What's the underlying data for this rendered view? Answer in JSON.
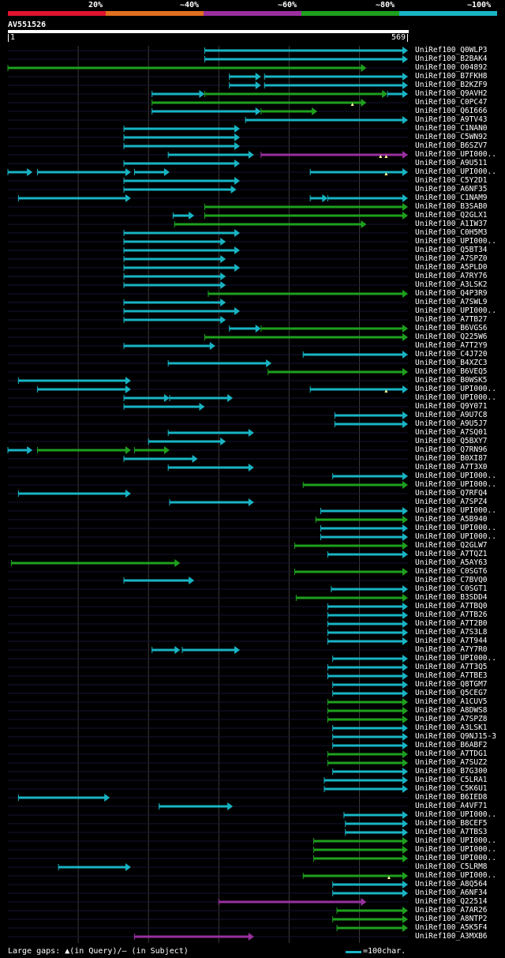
{
  "query": {
    "id": "AV551526",
    "start": "1",
    "end": "569",
    "length": 569
  },
  "scale": {
    "labels": [
      "20%",
      "~40%",
      "~60%",
      "~80%",
      "~100%"
    ],
    "colors": [
      "#e0132f",
      "#e07020",
      "#9a2fa0",
      "#1ea01e",
      "#18b4c4"
    ]
  },
  "legend": {
    "gaps_text": "Large gaps: ▲(in Query)/— (in Subject)",
    "scale_text": "=100char."
  },
  "rows": [
    {
      "label": "UniRef100_Q0WLP3",
      "segs": [
        [
          280,
          569,
          "c"
        ]
      ]
    },
    {
      "label": "UniRef100_B2BAK4",
      "segs": [
        [
          280,
          569,
          "c"
        ]
      ]
    },
    {
      "label": "UniRef100_O04892",
      "segs": [
        [
          0,
          510,
          "g"
        ]
      ]
    },
    {
      "label": "UniRef100_B7FKH8",
      "segs": [
        [
          315,
          360,
          "c"
        ],
        [
          365,
          569,
          "c"
        ]
      ]
    },
    {
      "label": "UniRef100_B2KZF9",
      "segs": [
        [
          315,
          360,
          "c"
        ],
        [
          365,
          569,
          "c"
        ]
      ]
    },
    {
      "label": "UniRef100_Q9AVH2",
      "segs": [
        [
          205,
          280,
          "c"
        ],
        [
          280,
          540,
          "g"
        ],
        [
          540,
          569,
          "c"
        ]
      ]
    },
    {
      "label": "UniRef100_C0PC47",
      "segs": [
        [
          205,
          510,
          "g"
        ]
      ],
      "gaps": [
        490
      ]
    },
    {
      "label": "UniRef100_Q6I666",
      "segs": [
        [
          205,
          360,
          "c"
        ],
        [
          360,
          440,
          "g"
        ]
      ]
    },
    {
      "label": "UniRef100_A9TV43",
      "segs": [
        [
          338,
          569,
          "c"
        ]
      ]
    },
    {
      "label": "UniRef100_C1NAN0",
      "segs": [
        [
          165,
          330,
          "c"
        ]
      ]
    },
    {
      "label": "UniRef100_C5WN92",
      "segs": [
        [
          165,
          330,
          "c"
        ]
      ]
    },
    {
      "label": "UniRef100_B6SZV7",
      "segs": [
        [
          165,
          330,
          "c"
        ]
      ]
    },
    {
      "label": "UniRef100_UPI000..",
      "segs": [
        [
          228,
          350,
          "c"
        ],
        [
          360,
          569,
          "m"
        ]
      ],
      "gaps": [
        530,
        538
      ]
    },
    {
      "label": "UniRef100_A9U511",
      "segs": [
        [
          165,
          330,
          "c"
        ]
      ]
    },
    {
      "label": "UniRef100_UPI000..",
      "segs": [
        [
          0,
          35,
          "c"
        ],
        [
          42,
          175,
          "c"
        ],
        [
          180,
          230,
          "c"
        ],
        [
          430,
          569,
          "c"
        ]
      ],
      "gaps": [
        538
      ]
    },
    {
      "label": "UniRef100_C5Y2D1",
      "segs": [
        [
          165,
          330,
          "c"
        ]
      ]
    },
    {
      "label": "UniRef100_A6NF35",
      "segs": [
        [
          165,
          325,
          "c"
        ]
      ]
    },
    {
      "label": "UniRef100_C1NAM9",
      "segs": [
        [
          15,
          175,
          "c"
        ],
        [
          430,
          455,
          "c"
        ],
        [
          455,
          569,
          "c"
        ]
      ]
    },
    {
      "label": "UniRef100_B3SAB0",
      "segs": [
        [
          280,
          569,
          "g"
        ]
      ]
    },
    {
      "label": "UniRef100_Q2GLX1",
      "segs": [
        [
          235,
          265,
          "c"
        ],
        [
          280,
          569,
          "g"
        ]
      ]
    },
    {
      "label": "UniRef100_A1IW37",
      "segs": [
        [
          237,
          510,
          "g"
        ]
      ]
    },
    {
      "label": "UniRef100_C0H5M3",
      "segs": [
        [
          165,
          330,
          "c"
        ]
      ]
    },
    {
      "label": "UniRef100_UPI000..",
      "segs": [
        [
          165,
          310,
          "c"
        ]
      ]
    },
    {
      "label": "UniRef100_Q5BT34",
      "segs": [
        [
          165,
          330,
          "c"
        ]
      ]
    },
    {
      "label": "UniRef100_A7SPZ0",
      "segs": [
        [
          165,
          310,
          "c"
        ]
      ]
    },
    {
      "label": "UniRef100_A5PLD0",
      "segs": [
        [
          165,
          330,
          "c"
        ]
      ]
    },
    {
      "label": "UniRef100_A7RY76",
      "segs": [
        [
          165,
          310,
          "c"
        ]
      ]
    },
    {
      "label": "UniRef100_A3LSK2",
      "segs": [
        [
          165,
          310,
          "c"
        ]
      ]
    },
    {
      "label": "UniRef100_Q4P3R9",
      "segs": [
        [
          285,
          569,
          "g"
        ]
      ]
    },
    {
      "label": "UniRef100_A7SWL9",
      "segs": [
        [
          165,
          310,
          "c"
        ]
      ]
    },
    {
      "label": "UniRef100_UPI000..",
      "segs": [
        [
          165,
          330,
          "c"
        ]
      ]
    },
    {
      "label": "UniRef100_A7TB27",
      "segs": [
        [
          165,
          310,
          "c"
        ]
      ]
    },
    {
      "label": "UniRef100_B6VGS6",
      "segs": [
        [
          315,
          360,
          "c"
        ],
        [
          360,
          569,
          "g"
        ]
      ]
    },
    {
      "label": "UniRef100_Q225W6",
      "segs": [
        [
          280,
          569,
          "g"
        ]
      ]
    },
    {
      "label": "UniRef100_A7T2Y9",
      "segs": [
        [
          165,
          295,
          "c"
        ]
      ]
    },
    {
      "label": "UniRef100_C4J720",
      "segs": [
        [
          420,
          569,
          "c"
        ]
      ]
    },
    {
      "label": "UniRef100_B4XZC3",
      "segs": [
        [
          228,
          375,
          "c"
        ]
      ]
    },
    {
      "label": "UniRef100_B6VEQ5",
      "segs": [
        [
          370,
          569,
          "g"
        ]
      ]
    },
    {
      "label": "UniRef100_B0WSK5",
      "segs": [
        [
          15,
          175,
          "c"
        ]
      ]
    },
    {
      "label": "UniRef100_UPI000..",
      "segs": [
        [
          42,
          175,
          "c"
        ],
        [
          430,
          569,
          "c"
        ]
      ],
      "gaps": [
        538
      ]
    },
    {
      "label": "UniRef100_UPI000..",
      "segs": [
        [
          165,
          230,
          "c"
        ],
        [
          230,
          320,
          "c"
        ]
      ]
    },
    {
      "label": "UniRef100_Q9Y071",
      "segs": [
        [
          165,
          280,
          "c"
        ]
      ]
    },
    {
      "label": "UniRef100_A9U7C8",
      "segs": [
        [
          465,
          569,
          "c"
        ]
      ]
    },
    {
      "label": "UniRef100_A9U5J7",
      "segs": [
        [
          465,
          569,
          "c"
        ]
      ]
    },
    {
      "label": "UniRef100_A7SQ01",
      "segs": [
        [
          228,
          350,
          "c"
        ]
      ]
    },
    {
      "label": "UniRef100_Q5BXY7",
      "segs": [
        [
          200,
          310,
          "c"
        ]
      ]
    },
    {
      "label": "UniRef100_Q7RN96",
      "segs": [
        [
          0,
          35,
          "c"
        ],
        [
          42,
          175,
          "g"
        ],
        [
          180,
          230,
          "g"
        ]
      ]
    },
    {
      "label": "UniRef100_B0XI87",
      "segs": [
        [
          165,
          270,
          "c"
        ]
      ]
    },
    {
      "label": "UniRef100_A7T3X0",
      "segs": [
        [
          228,
          350,
          "c"
        ]
      ]
    },
    {
      "label": "UniRef100_UPI000..",
      "segs": [
        [
          462,
          569,
          "c"
        ]
      ]
    },
    {
      "label": "UniRef100_UPI000..",
      "segs": [
        [
          420,
          569,
          "g"
        ]
      ]
    },
    {
      "label": "UniRef100_Q7RFQ4",
      "segs": [
        [
          15,
          175,
          "c"
        ]
      ]
    },
    {
      "label": "UniRef100_A7SPZ4",
      "segs": [
        [
          230,
          350,
          "c"
        ]
      ]
    },
    {
      "label": "UniRef100_UPI000..",
      "segs": [
        [
          445,
          569,
          "c"
        ]
      ]
    },
    {
      "label": "UniRef100_A5B940",
      "segs": [
        [
          438,
          569,
          "g"
        ]
      ]
    },
    {
      "label": "UniRef100_UPI000..",
      "segs": [
        [
          445,
          569,
          "c"
        ]
      ]
    },
    {
      "label": "UniRef100_UPI000..",
      "segs": [
        [
          445,
          569,
          "c"
        ]
      ]
    },
    {
      "label": "UniRef100_Q2GLW7",
      "segs": [
        [
          408,
          569,
          "g"
        ]
      ]
    },
    {
      "label": "UniRef100_A7TQZ1",
      "segs": [
        [
          455,
          569,
          "c"
        ]
      ]
    },
    {
      "label": "UniRef100_A5AY63",
      "segs": [
        [
          5,
          245,
          "g"
        ]
      ]
    },
    {
      "label": "UniRef100_C0SGT6",
      "segs": [
        [
          408,
          569,
          "g"
        ]
      ]
    },
    {
      "label": "UniRef100_C7BVQ0",
      "segs": [
        [
          165,
          265,
          "c"
        ]
      ]
    },
    {
      "label": "UniRef100_C0SGT1",
      "segs": [
        [
          460,
          569,
          "c"
        ]
      ]
    },
    {
      "label": "UniRef100_B3SDD4",
      "segs": [
        [
          410,
          569,
          "g"
        ]
      ]
    },
    {
      "label": "UniRef100_A7TBQ0",
      "segs": [
        [
          455,
          569,
          "c"
        ]
      ]
    },
    {
      "label": "UniRef100_A7TB26",
      "segs": [
        [
          455,
          569,
          "c"
        ]
      ]
    },
    {
      "label": "UniRef100_A7T2B0",
      "segs": [
        [
          455,
          569,
          "c"
        ]
      ]
    },
    {
      "label": "UniRef100_A7S3L8",
      "segs": [
        [
          455,
          569,
          "c"
        ]
      ]
    },
    {
      "label": "UniRef100_A7T944",
      "segs": [
        [
          455,
          569,
          "c"
        ]
      ]
    },
    {
      "label": "UniRef100_A7Y7R0",
      "segs": [
        [
          205,
          245,
          "c"
        ],
        [
          248,
          330,
          "c"
        ]
      ]
    },
    {
      "label": "UniRef100_UPI000..",
      "segs": [
        [
          462,
          569,
          "c"
        ]
      ]
    },
    {
      "label": "UniRef100_A7T3Q5",
      "segs": [
        [
          455,
          569,
          "c"
        ]
      ]
    },
    {
      "label": "UniRef100_A7TBE3",
      "segs": [
        [
          455,
          569,
          "c"
        ]
      ]
    },
    {
      "label": "UniRef100_Q8TGM7",
      "segs": [
        [
          462,
          569,
          "c"
        ]
      ]
    },
    {
      "label": "UniRef100_Q5CEG7",
      "segs": [
        [
          462,
          569,
          "c"
        ]
      ]
    },
    {
      "label": "UniRef100_A1CUV5",
      "segs": [
        [
          455,
          569,
          "g"
        ]
      ]
    },
    {
      "label": "UniRef100_A8DWS8",
      "segs": [
        [
          455,
          569,
          "g"
        ]
      ]
    },
    {
      "label": "UniRef100_A7SPZ8",
      "segs": [
        [
          455,
          569,
          "g"
        ]
      ]
    },
    {
      "label": "UniRef100_A3LSK1",
      "segs": [
        [
          462,
          569,
          "c"
        ]
      ]
    },
    {
      "label": "UniRef100_Q9NJ15-3",
      "segs": [
        [
          462,
          569,
          "c"
        ]
      ]
    },
    {
      "label": "UniRef100_B6ABF2",
      "segs": [
        [
          462,
          569,
          "c"
        ]
      ]
    },
    {
      "label": "UniRef100_A7TDG1",
      "segs": [
        [
          455,
          569,
          "g"
        ]
      ]
    },
    {
      "label": "UniRef100_A7SUZ2",
      "segs": [
        [
          455,
          569,
          "g"
        ]
      ]
    },
    {
      "label": "UniRef100_B7G300",
      "segs": [
        [
          462,
          569,
          "c"
        ]
      ]
    },
    {
      "label": "UniRef100_C5LRA1",
      "segs": [
        [
          450,
          569,
          "c"
        ]
      ]
    },
    {
      "label": "UniRef100_C5K6U1",
      "segs": [
        [
          450,
          569,
          "c"
        ]
      ]
    },
    {
      "label": "UniRef100_B6IED8",
      "segs": [
        [
          15,
          145,
          "c"
        ]
      ]
    },
    {
      "label": "UniRef100_A4VF71",
      "segs": [
        [
          215,
          320,
          "c"
        ]
      ]
    },
    {
      "label": "UniRef100_UPI000..",
      "segs": [
        [
          478,
          569,
          "c"
        ]
      ]
    },
    {
      "label": "UniRef100_B8CEF5",
      "segs": [
        [
          480,
          569,
          "c"
        ]
      ]
    },
    {
      "label": "UniRef100_A7TBS3",
      "segs": [
        [
          480,
          569,
          "c"
        ]
      ]
    },
    {
      "label": "UniRef100_UPI000..",
      "segs": [
        [
          435,
          569,
          "g"
        ]
      ]
    },
    {
      "label": "UniRef100_UPI000..",
      "segs": [
        [
          435,
          569,
          "g"
        ]
      ]
    },
    {
      "label": "UniRef100_UPI000..",
      "segs": [
        [
          435,
          569,
          "g"
        ]
      ]
    },
    {
      "label": "UniRef100_C5LRM8",
      "segs": [
        [
          72,
          175,
          "c"
        ]
      ]
    },
    {
      "label": "UniRef100_UPI000..",
      "segs": [
        [
          420,
          569,
          "g"
        ]
      ],
      "gaps": [
        542
      ]
    },
    {
      "label": "UniRef100_A8Q564",
      "segs": [
        [
          462,
          569,
          "c"
        ]
      ]
    },
    {
      "label": "UniRef100_A6NF34",
      "segs": [
        [
          462,
          569,
          "c"
        ]
      ]
    },
    {
      "label": "UniRef100_Q22514",
      "segs": [
        [
          300,
          510,
          "m"
        ]
      ]
    },
    {
      "label": "UniRef100_A7AR26",
      "segs": [
        [
          468,
          569,
          "g"
        ]
      ]
    },
    {
      "label": "UniRef100_A8NTP2",
      "segs": [
        [
          462,
          569,
          "g"
        ]
      ]
    },
    {
      "label": "UniRef100_A5K5F4",
      "segs": [
        [
          468,
          569,
          "g"
        ]
      ]
    },
    {
      "label": "UniRef100_A3MXB6",
      "segs": [
        [
          180,
          350,
          "m"
        ]
      ]
    }
  ]
}
